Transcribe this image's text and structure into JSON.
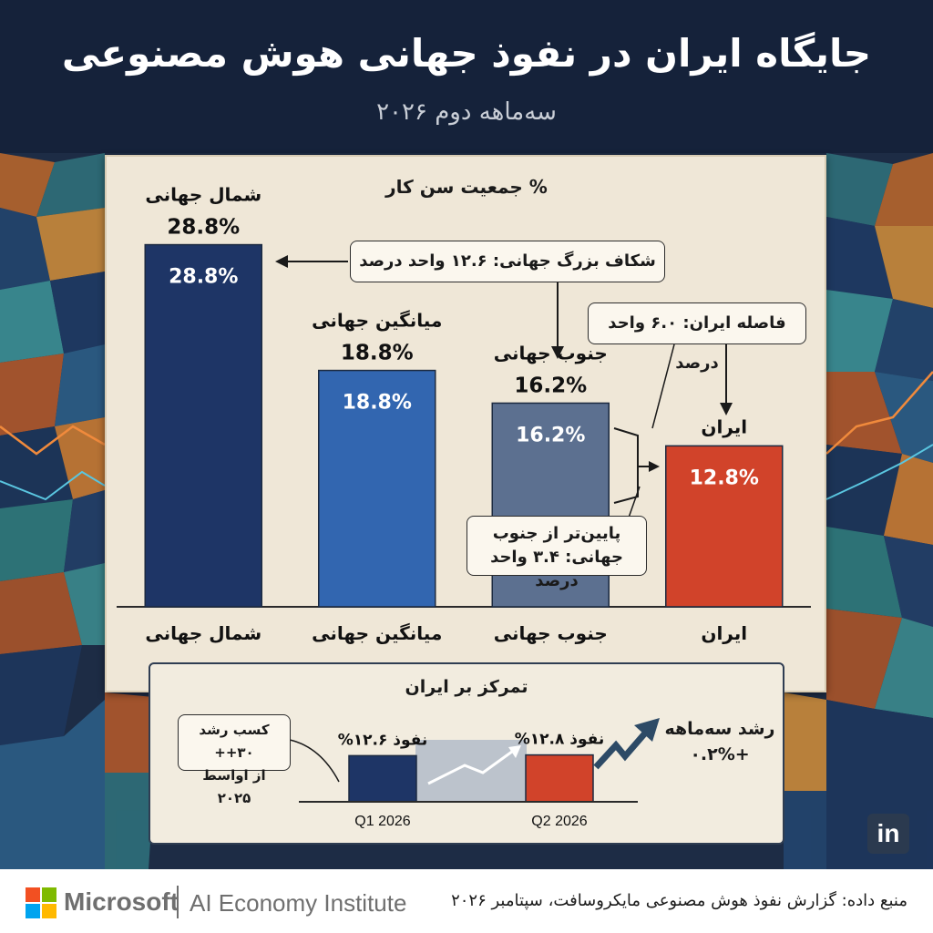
{
  "header": {
    "title": "جایگاه ایران در نفوذ جهانی هوش مصنوعی",
    "subtitle": "سه‌ماهه دوم ۲۰۲۶"
  },
  "colors": {
    "header_bg": "#15223a",
    "panel_bg": "#efe7d7",
    "global_north": "#1e3566",
    "global_average": "#3266b0",
    "global_south": "#5c7090",
    "iran": "#d1432a"
  },
  "chart_data": {
    "type": "bar",
    "title": "% جمعیت سن کار",
    "categories": [
      "شمال جهانی",
      "میانگین جهانی",
      "جنوب جهانی",
      "ایران"
    ],
    "series": [
      {
        "values": [
          28.8,
          18.8,
          16.2,
          12.8
        ]
      }
    ],
    "top_labels": [
      "شمال جهانی",
      "میانگین جهانی",
      "جنوب جهانی",
      "ایران"
    ],
    "value_labels": [
      "28.8%",
      "18.8%",
      "16.2%",
      "12.8%"
    ],
    "ylim": [
      0,
      30
    ],
    "grid": false,
    "annotations": [
      "شکاف بزرگ جهانی: ۱۲.۶ واحد درصد",
      "فاصله ایران: ۶.۰ واحد درصد",
      "پایین‌تر از جنوب جهانی: ۳.۴ واحد درصد"
    ]
  },
  "focus_panel": {
    "title": "تمرکز بر ایران",
    "chart_data": {
      "type": "bar",
      "categories": [
        "Q1 2026",
        "Q2 2026"
      ],
      "series": [
        {
          "values": [
            12.6,
            12.8
          ]
        }
      ],
      "ylim": [
        0,
        13.2
      ],
      "value_labels": [
        "نفوذ ۱۲.۶%",
        "نفوذ ۱۲.۸%"
      ]
    },
    "growth_note_line1": "کسب رشد ۳۰++",
    "growth_note_line2": "از اواسط ۲۰۲۵",
    "quarterly_growth_label": "رشد سه‌ماهه",
    "quarterly_growth_value": "+۰.۲%"
  },
  "footer": {
    "brand": "Microsoft",
    "institute": "AI Economy Institute",
    "source": "منبع داده: گزارش نفوذ هوش مصنوعی مایکروسافت، سپتامبر ۲۰۲۶"
  },
  "social": {
    "icon": "linkedin-icon",
    "label": "in"
  }
}
